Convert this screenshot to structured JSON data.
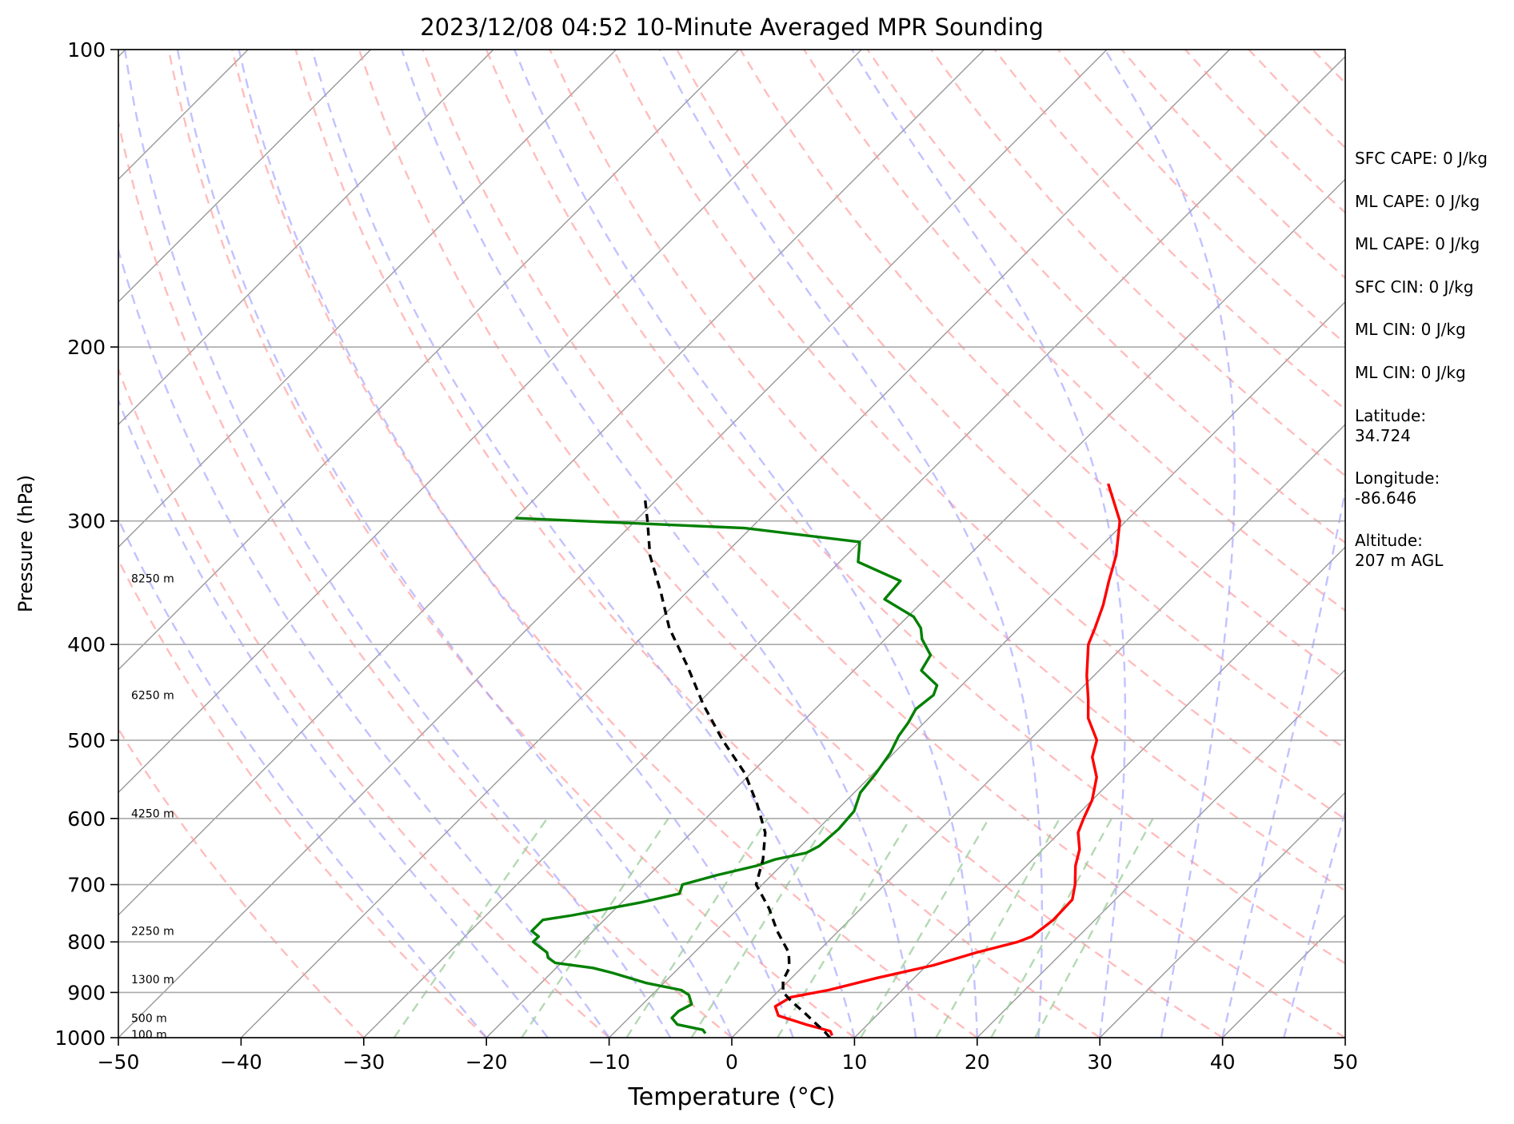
{
  "chart_data": {
    "type": "line",
    "title": "2023/12/08 04:52 10-Minute Averaged MPR Sounding",
    "xlabel": "Temperature (°C)",
    "ylabel": "Pressure (hPa)",
    "xlim": [
      -50,
      50
    ],
    "ylim": [
      1000,
      100
    ],
    "y_scale": "log",
    "x_ticks": [
      "−50",
      "−40",
      "−30",
      "−20",
      "−10",
      "0",
      "10",
      "20",
      "30",
      "40",
      "50"
    ],
    "y_ticks": [
      "100",
      "200",
      "300",
      "400",
      "500",
      "600",
      "700",
      "800",
      "900",
      "1000"
    ],
    "grid": true,
    "height_labels": [
      {
        "label": "8250 m",
        "p": 343
      },
      {
        "label": "6250 m",
        "p": 450
      },
      {
        "label": "4250 m",
        "p": 593
      },
      {
        "label": "2250 m",
        "p": 780
      },
      {
        "label": "1300 m",
        "p": 873
      },
      {
        "label": "500 m",
        "p": 955
      },
      {
        "label": "100 m",
        "p": 993
      }
    ],
    "series": [
      {
        "color": "#ff0000",
        "points": [
          [
            -14.5,
            275
          ],
          [
            -10.5,
            300
          ],
          [
            -8.0,
            325
          ],
          [
            -6.5,
            345
          ],
          [
            -5.0,
            365
          ],
          [
            -3.8,
            385
          ],
          [
            -3.0,
            400
          ],
          [
            -0.6,
            430
          ],
          [
            1.5,
            455
          ],
          [
            3.0,
            475
          ],
          [
            5.5,
            500
          ],
          [
            6.5,
            520
          ],
          [
            8.5,
            545
          ],
          [
            10.0,
            575
          ],
          [
            10.8,
            600
          ],
          [
            11.5,
            620
          ],
          [
            13.0,
            645
          ],
          [
            14.0,
            670
          ],
          [
            15.5,
            700
          ],
          [
            16.5,
            725
          ],
          [
            16.6,
            760
          ],
          [
            16.2,
            790
          ],
          [
            15.5,
            800
          ],
          [
            13.0,
            820
          ],
          [
            10.5,
            845
          ],
          [
            7.0,
            870
          ],
          [
            4.0,
            895
          ],
          [
            1.5,
            910
          ],
          [
            1.0,
            930
          ],
          [
            2.0,
            950
          ],
          [
            5.0,
            970
          ],
          [
            7.5,
            985
          ],
          [
            8.0,
            995
          ]
        ]
      },
      {
        "color": "#008000",
        "points": [
          [
            -60.0,
            298
          ],
          [
            -40.5,
            305
          ],
          [
            -30.0,
            315
          ],
          [
            -28.5,
            330
          ],
          [
            -23.5,
            345
          ],
          [
            -23.3,
            360
          ],
          [
            -19.5,
            375
          ],
          [
            -18.0,
            385
          ],
          [
            -17.0,
            395
          ],
          [
            -15.0,
            410
          ],
          [
            -14.5,
            425
          ],
          [
            -12.0,
            440
          ],
          [
            -11.5,
            450
          ],
          [
            -11.8,
            465
          ],
          [
            -11.3,
            480
          ],
          [
            -11.0,
            495
          ],
          [
            -10.3,
            515
          ],
          [
            -9.8,
            540
          ],
          [
            -9.5,
            565
          ],
          [
            -8.5,
            590
          ],
          [
            -8.3,
            615
          ],
          [
            -8.5,
            640
          ],
          [
            -9.0,
            650
          ],
          [
            -11.0,
            660
          ],
          [
            -12.0,
            670
          ],
          [
            -14.5,
            685
          ],
          [
            -16.5,
            700
          ],
          [
            -16.0,
            715
          ],
          [
            -18.5,
            730
          ],
          [
            -23.0,
            752
          ],
          [
            -25.0,
            760
          ],
          [
            -25.0,
            780
          ],
          [
            -24.0,
            790
          ],
          [
            -24.0,
            800
          ],
          [
            -23.0,
            810
          ],
          [
            -22.0,
            820
          ],
          [
            -21.5,
            830
          ],
          [
            -20.5,
            840
          ],
          [
            -17.0,
            850
          ],
          [
            -15.0,
            860
          ],
          [
            -11.5,
            880
          ],
          [
            -8.0,
            895
          ],
          [
            -7.0,
            905
          ],
          [
            -6.5,
            915
          ],
          [
            -6.0,
            925
          ],
          [
            -6.5,
            940
          ],
          [
            -6.5,
            955
          ],
          [
            -5.5,
            970
          ],
          [
            -3.0,
            982
          ],
          [
            -2.5,
            990
          ]
        ]
      },
      {
        "color": "#000000",
        "dashed": true,
        "points": [
          [
            8.0,
            1000
          ],
          [
            7.0,
            985
          ],
          [
            5.5,
            965
          ],
          [
            4.0,
            945
          ],
          [
            2.0,
            920
          ],
          [
            0.5,
            900
          ],
          [
            -0.5,
            875
          ],
          [
            -1.0,
            850
          ],
          [
            -2.3,
            820
          ],
          [
            -5.0,
            780
          ],
          [
            -7.5,
            740
          ],
          [
            -10.5,
            700
          ],
          [
            -12.0,
            660
          ],
          [
            -14.0,
            620
          ],
          [
            -17.0,
            580
          ],
          [
            -20.5,
            540
          ],
          [
            -25.0,
            500
          ],
          [
            -29.5,
            460
          ],
          [
            -34.0,
            420
          ],
          [
            -38.5,
            385
          ],
          [
            -42.0,
            355
          ],
          [
            -46.0,
            325
          ],
          [
            -49.0,
            300
          ],
          [
            -51.0,
            285
          ]
        ]
      }
    ]
  },
  "side_info": {
    "sfc_cape": "SFC CAPE: 0 J/kg",
    "ml_cape_1": "ML CAPE: 0 J/kg",
    "ml_cape_2": "ML CAPE: 0 J/kg",
    "sfc_cin": "SFC CIN: 0 J/kg",
    "ml_cin_1": "ML CIN: 0 J/kg",
    "ml_cin_2": "ML CIN: 0 J/kg",
    "latitude_label": "Latitude:",
    "latitude_value": "34.724",
    "longitude_label": "Longitude:",
    "longitude_value": "-86.646",
    "altitude_label": "Altitude:",
    "altitude_value": "207 m AGL"
  },
  "colors": {
    "dry_adiabat": "#ff9999",
    "moist_adiabat": "#9999ff",
    "mixing_ratio": "#99cc99",
    "isotherm": "#999999"
  }
}
